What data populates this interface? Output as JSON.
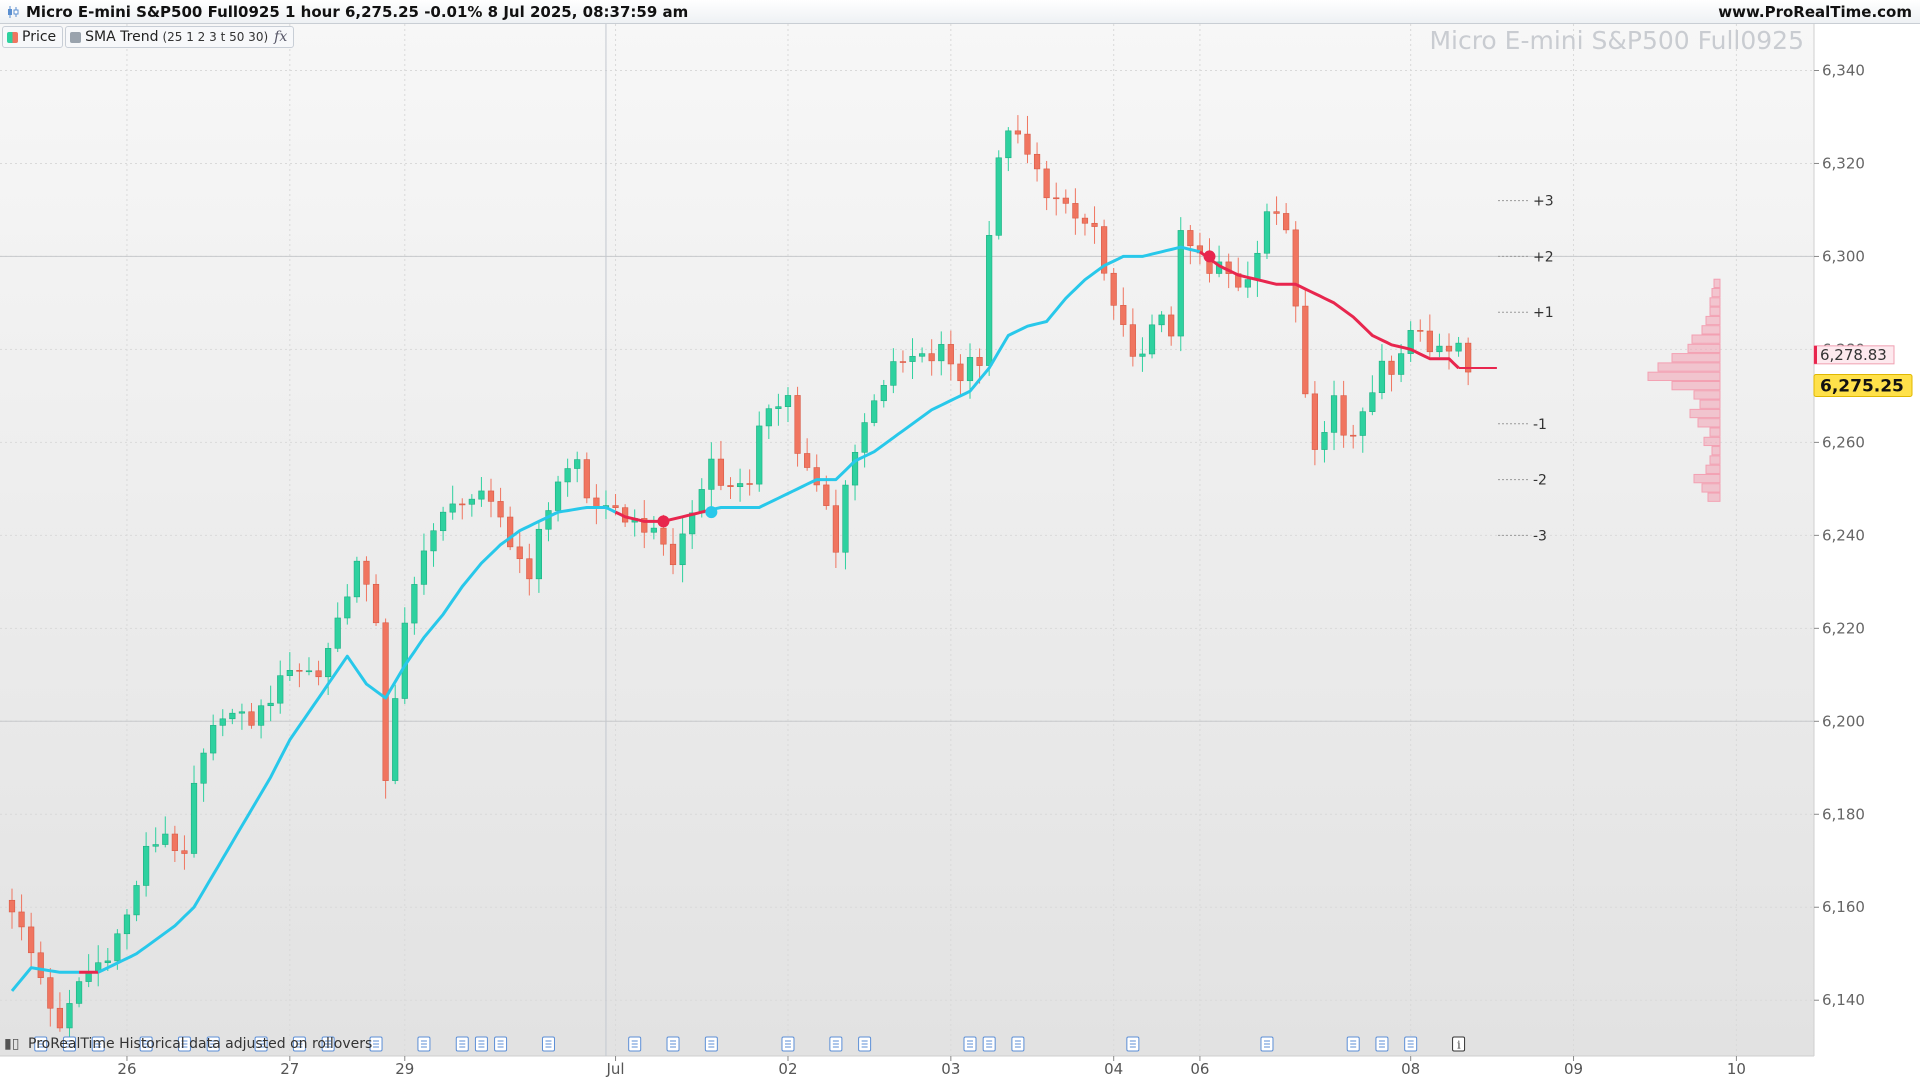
{
  "window": {
    "title": "Micro E-mini S&P500 Full0925 1 hour 6,275.25 -0.01% 8 Jul 2025, 08:37:59 am",
    "site": "www.ProRealTime.com",
    "watermark": "Micro E-mini S&P500 Full0925"
  },
  "legend": {
    "price_label": "Price",
    "indicator_label": "SMA Trend",
    "indicator_params": "(25 1 2 3 t 50 30)",
    "fx_symbol": "fx"
  },
  "footnote": "ProRealTime Historical data adjusted on rollovers",
  "colors": {
    "up_candle": "#2ed19f",
    "down_candle": "#f07560",
    "sma_up": "#28c8ea",
    "sma_down": "#e8264e",
    "profile": "#f3a0b2",
    "last_price_bg": "#ffe14a"
  },
  "chart_data": {
    "type": "candlestick",
    "instrument": "Micro E-mini S&P500 Full0925",
    "timeframe": "1 hour",
    "ylim": [
      6128,
      6350
    ],
    "y_ticks": [
      6140,
      6160,
      6180,
      6200,
      6220,
      6240,
      6260,
      6280,
      6300,
      6320,
      6340
    ],
    "y_tick_labels": [
      "6,140",
      "6,160",
      "6,180",
      "6,200",
      "6,220",
      "6,240",
      "6,260",
      "6,280",
      "6,300",
      "6,320",
      "6,340"
    ],
    "x_ticks": [
      {
        "label": "26",
        "index": 12
      },
      {
        "label": "27",
        "index": 29
      },
      {
        "label": "29",
        "index": 41
      },
      {
        "label": "Jul",
        "index": 63
      },
      {
        "label": "02",
        "index": 81
      },
      {
        "label": "03",
        "index": 98
      },
      {
        "label": "04",
        "index": 115
      },
      {
        "label": "06",
        "index": 124
      },
      {
        "label": "08",
        "index": 146
      },
      {
        "label": "09",
        "index": 163
      },
      {
        "label": "10",
        "index": 180
      }
    ],
    "x_range": [
      0,
      184
    ],
    "last_index": 152,
    "keypoints": [
      [
        0,
        6160
      ],
      [
        3,
        6145
      ],
      [
        5,
        6133
      ],
      [
        7,
        6144
      ],
      [
        10,
        6150
      ],
      [
        12,
        6158
      ],
      [
        14,
        6172
      ],
      [
        16,
        6176
      ],
      [
        18,
        6170
      ],
      [
        19,
        6186
      ],
      [
        21,
        6198
      ],
      [
        22,
        6202
      ],
      [
        25,
        6200
      ],
      [
        27,
        6205
      ],
      [
        29,
        6212
      ],
      [
        32,
        6210
      ],
      [
        34,
        6222
      ],
      [
        36,
        6234
      ],
      [
        38,
        6222
      ],
      [
        39,
        6188
      ],
      [
        41,
        6220
      ],
      [
        43,
        6238
      ],
      [
        45,
        6244
      ],
      [
        47,
        6248
      ],
      [
        49,
        6248
      ],
      [
        51,
        6244
      ],
      [
        52,
        6238
      ],
      [
        54,
        6232
      ],
      [
        55,
        6240
      ],
      [
        57,
        6252
      ],
      [
        59,
        6256
      ],
      [
        60,
        6248
      ],
      [
        62,
        6245
      ],
      [
        64,
        6244
      ],
      [
        66,
        6242
      ],
      [
        68,
        6238
      ],
      [
        69,
        6234
      ],
      [
        70,
        6240
      ],
      [
        72,
        6250
      ],
      [
        73,
        6258
      ],
      [
        74,
        6250
      ],
      [
        76,
        6252
      ],
      [
        77,
        6250
      ],
      [
        78,
        6262
      ],
      [
        79,
        6268
      ],
      [
        81,
        6270
      ],
      [
        82,
        6258
      ],
      [
        83,
        6254
      ],
      [
        85,
        6246
      ],
      [
        86,
        6236
      ],
      [
        87,
        6252
      ],
      [
        89,
        6264
      ],
      [
        90,
        6270
      ],
      [
        92,
        6276
      ],
      [
        94,
        6278
      ],
      [
        96,
        6278
      ],
      [
        97,
        6280
      ],
      [
        99,
        6274
      ],
      [
        100,
        6278
      ],
      [
        101,
        6278
      ],
      [
        102,
        6305
      ],
      [
        103,
        6320
      ],
      [
        104,
        6328
      ],
      [
        105,
        6325
      ],
      [
        107,
        6318
      ],
      [
        108,
        6314
      ],
      [
        110,
        6310
      ],
      [
        111,
        6308
      ],
      [
        113,
        6306
      ],
      [
        114,
        6296
      ],
      [
        115,
        6288
      ],
      [
        117,
        6280
      ],
      [
        118,
        6278
      ],
      [
        119,
        6284
      ],
      [
        120,
        6288
      ],
      [
        121,
        6284
      ],
      [
        122,
        6304
      ],
      [
        123,
        6302
      ],
      [
        124,
        6300
      ],
      [
        125,
        6296
      ],
      [
        126,
        6298
      ],
      [
        128,
        6294
      ],
      [
        129,
        6296
      ],
      [
        130,
        6302
      ],
      [
        131,
        6310
      ],
      [
        133,
        6306
      ],
      [
        134,
        6290
      ],
      [
        135,
        6272
      ],
      [
        136,
        6260
      ],
      [
        137,
        6262
      ],
      [
        138,
        6270
      ],
      [
        139,
        6262
      ],
      [
        140,
        6262
      ],
      [
        141,
        6268
      ],
      [
        142,
        6272
      ],
      [
        143,
        6276
      ],
      [
        144,
        6276
      ],
      [
        145,
        6280
      ],
      [
        146,
        6284
      ],
      [
        147,
        6284
      ],
      [
        148,
        6280
      ],
      [
        149,
        6282
      ],
      [
        150,
        6280
      ],
      [
        151,
        6280
      ],
      [
        152,
        6275.25
      ]
    ],
    "sma_keypoints": [
      [
        0,
        6142
      ],
      [
        2,
        6147
      ],
      [
        5,
        6146
      ],
      [
        7,
        6146
      ],
      [
        9,
        6146
      ],
      [
        11,
        6148
      ],
      [
        13,
        6150
      ],
      [
        15,
        6153
      ],
      [
        17,
        6156
      ],
      [
        19,
        6160
      ],
      [
        21,
        6167
      ],
      [
        23,
        6174
      ],
      [
        25,
        6181
      ],
      [
        27,
        6188
      ],
      [
        29,
        6196
      ],
      [
        31,
        6202
      ],
      [
        33,
        6208
      ],
      [
        35,
        6214
      ],
      [
        37,
        6208
      ],
      [
        39,
        6205
      ],
      [
        41,
        6212
      ],
      [
        43,
        6218
      ],
      [
        45,
        6223
      ],
      [
        47,
        6229
      ],
      [
        49,
        6234
      ],
      [
        51,
        6238
      ],
      [
        53,
        6241
      ],
      [
        55,
        6243
      ],
      [
        57,
        6245
      ],
      [
        60,
        6246
      ],
      [
        62,
        6246
      ],
      [
        64,
        6244
      ],
      [
        66,
        6243
      ],
      [
        68,
        6243
      ],
      [
        70,
        6244
      ],
      [
        72,
        6245
      ],
      [
        74,
        6246
      ],
      [
        76,
        6246
      ],
      [
        78,
        6246
      ],
      [
        80,
        6248
      ],
      [
        82,
        6250
      ],
      [
        84,
        6252
      ],
      [
        86,
        6252
      ],
      [
        88,
        6256
      ],
      [
        90,
        6258
      ],
      [
        92,
        6261
      ],
      [
        94,
        6264
      ],
      [
        96,
        6267
      ],
      [
        98,
        6269
      ],
      [
        100,
        6271
      ],
      [
        102,
        6276
      ],
      [
        104,
        6283
      ],
      [
        106,
        6285
      ],
      [
        108,
        6286
      ],
      [
        110,
        6291
      ],
      [
        112,
        6295
      ],
      [
        114,
        6298
      ],
      [
        116,
        6300
      ],
      [
        118,
        6300
      ],
      [
        120,
        6301
      ],
      [
        122,
        6302
      ],
      [
        124,
        6301
      ],
      [
        126,
        6298
      ],
      [
        128,
        6296
      ],
      [
        130,
        6295
      ],
      [
        132,
        6294
      ],
      [
        134,
        6294
      ],
      [
        136,
        6292
      ],
      [
        138,
        6290
      ],
      [
        140,
        6287
      ],
      [
        142,
        6283
      ],
      [
        144,
        6281
      ],
      [
        146,
        6280
      ],
      [
        148,
        6278
      ],
      [
        150,
        6278
      ],
      [
        151,
        6276
      ]
    ],
    "sma_extension": {
      "from_index": 151,
      "to_index": 155,
      "value": 6276
    },
    "trend_segments": [
      {
        "from": 0,
        "to": 7,
        "direction": "up"
      },
      {
        "from": 7,
        "to": 9,
        "direction": "down"
      },
      {
        "from": 9,
        "to": 63,
        "direction": "up"
      },
      {
        "from": 63,
        "to": 73,
        "direction": "down"
      },
      {
        "from": 73,
        "to": 124,
        "direction": "up"
      },
      {
        "from": 124,
        "to": 155,
        "direction": "down"
      }
    ],
    "signal_dots": [
      {
        "index": 68,
        "value": 6243,
        "direction": "down"
      },
      {
        "index": 73,
        "value": 6245,
        "direction": "up"
      },
      {
        "index": 125,
        "value": 6300,
        "direction": "down"
      }
    ],
    "deviation_levels": [
      {
        "label": "+3",
        "value": 6312
      },
      {
        "label": "+2",
        "value": 6300
      },
      {
        "label": "+1",
        "value": 6288
      },
      {
        "label": "-1",
        "value": 6264
      },
      {
        "label": "-2",
        "value": 6252
      },
      {
        "label": "-3",
        "value": 6240
      }
    ],
    "volume_profile": {
      "bins": [
        [
          6248,
          12
        ],
        [
          6250,
          18
        ],
        [
          6252,
          26
        ],
        [
          6254,
          14
        ],
        [
          6256,
          10
        ],
        [
          6258,
          8
        ],
        [
          6260,
          16
        ],
        [
          6262,
          10
        ],
        [
          6264,
          22
        ],
        [
          6266,
          30
        ],
        [
          6268,
          20
        ],
        [
          6270,
          26
        ],
        [
          6272,
          48
        ],
        [
          6274,
          72
        ],
        [
          6276,
          62
        ],
        [
          6278,
          48
        ],
        [
          6280,
          32
        ],
        [
          6282,
          28
        ],
        [
          6284,
          18
        ],
        [
          6286,
          14
        ],
        [
          6288,
          10
        ],
        [
          6290,
          10
        ],
        [
          6292,
          8
        ],
        [
          6294,
          6
        ]
      ],
      "max_width": 72
    },
    "last_price": 6275.25,
    "last_price_label": "6,275.25",
    "sma_value_label": "6,278.83",
    "sma_value": 6278.83,
    "reference_lines": [
      6200,
      6300
    ],
    "news_markers": [
      3,
      6,
      9,
      14,
      18,
      21,
      26,
      30,
      33,
      38,
      43,
      47,
      49,
      51,
      56,
      65,
      69,
      73,
      81,
      86,
      89,
      100,
      102,
      105,
      117,
      131,
      140,
      143,
      146
    ],
    "info_marker": 151,
    "vertical_line_index": 62
  }
}
